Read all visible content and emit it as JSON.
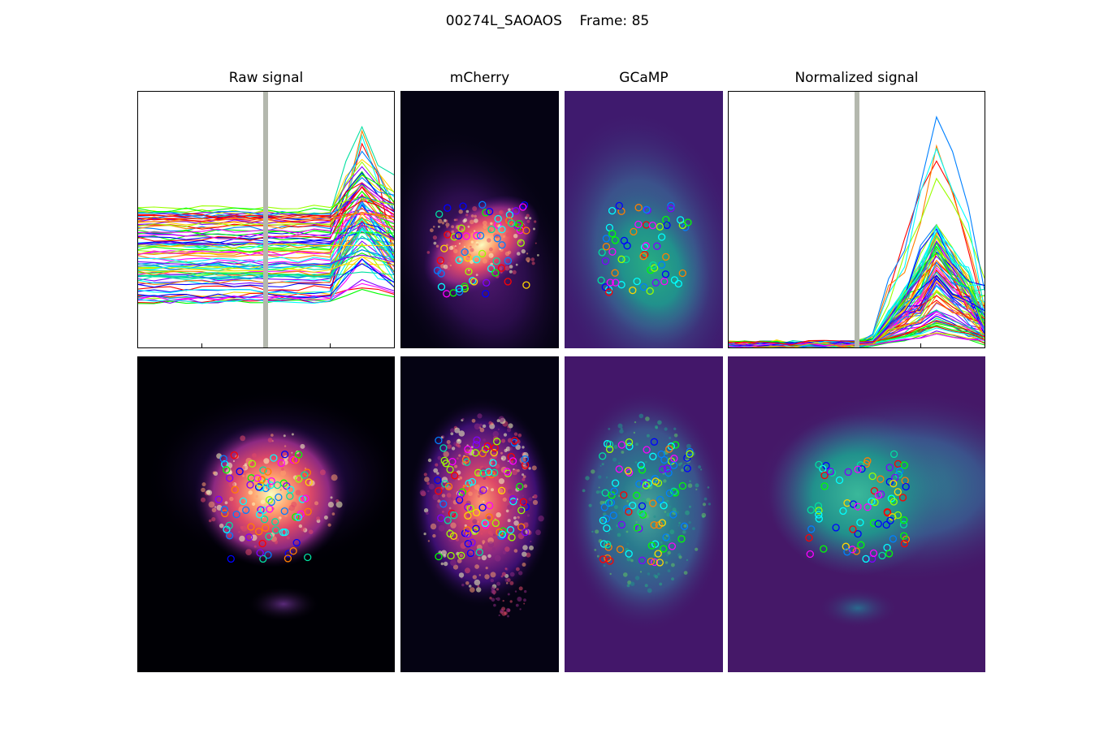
{
  "figure": {
    "title": "00274L_SAOAOS    Frame: 85"
  },
  "panels": {
    "raw": {
      "title": "Raw signal"
    },
    "mcherry": {
      "title": "mCherry"
    },
    "gcamp": {
      "title": "GCaMP"
    },
    "normalized": {
      "title": "Normalized signal"
    }
  },
  "colors": {
    "frame_marker": "#b4b8ae",
    "mcherry_cmap": [
      "#050313",
      "#3b0f6f",
      "#8c2981",
      "#de4968",
      "#fe9f6d",
      "#fcfdbf"
    ],
    "gcamp_cmap": [
      "#440154",
      "#3b528b",
      "#21918c",
      "#27ad81",
      "#5ec962"
    ],
    "roi_palette": [
      "#ff0000",
      "#ff7f00",
      "#ffd700",
      "#9aff00",
      "#00ff00",
      "#00e0a0",
      "#00ffff",
      "#0080ff",
      "#0000ff",
      "#7f00ff",
      "#ff00ff"
    ]
  },
  "chart_data": [
    {
      "type": "line",
      "panel": "raw",
      "title": "Raw signal",
      "xlabel": "",
      "ylabel": "",
      "series_count": 90,
      "frame_marker_x": 0.5,
      "description_values": {
        "baseline_range": [
          0.18,
          0.55
        ],
        "peak_max": 0.95,
        "peak_x": 0.85,
        "onset_x": 0.75
      },
      "grid": false,
      "legend": "none"
    },
    {
      "type": "line",
      "panel": "normalized",
      "title": "Normalized signal",
      "xlabel": "",
      "ylabel": "",
      "series_count": 90,
      "frame_marker_x": 0.5,
      "description_values": {
        "baseline": 0.02,
        "peak_max": 0.95,
        "peak_x": 0.8,
        "onset_x": 0.55
      },
      "grid": false,
      "legend": "none"
    }
  ]
}
